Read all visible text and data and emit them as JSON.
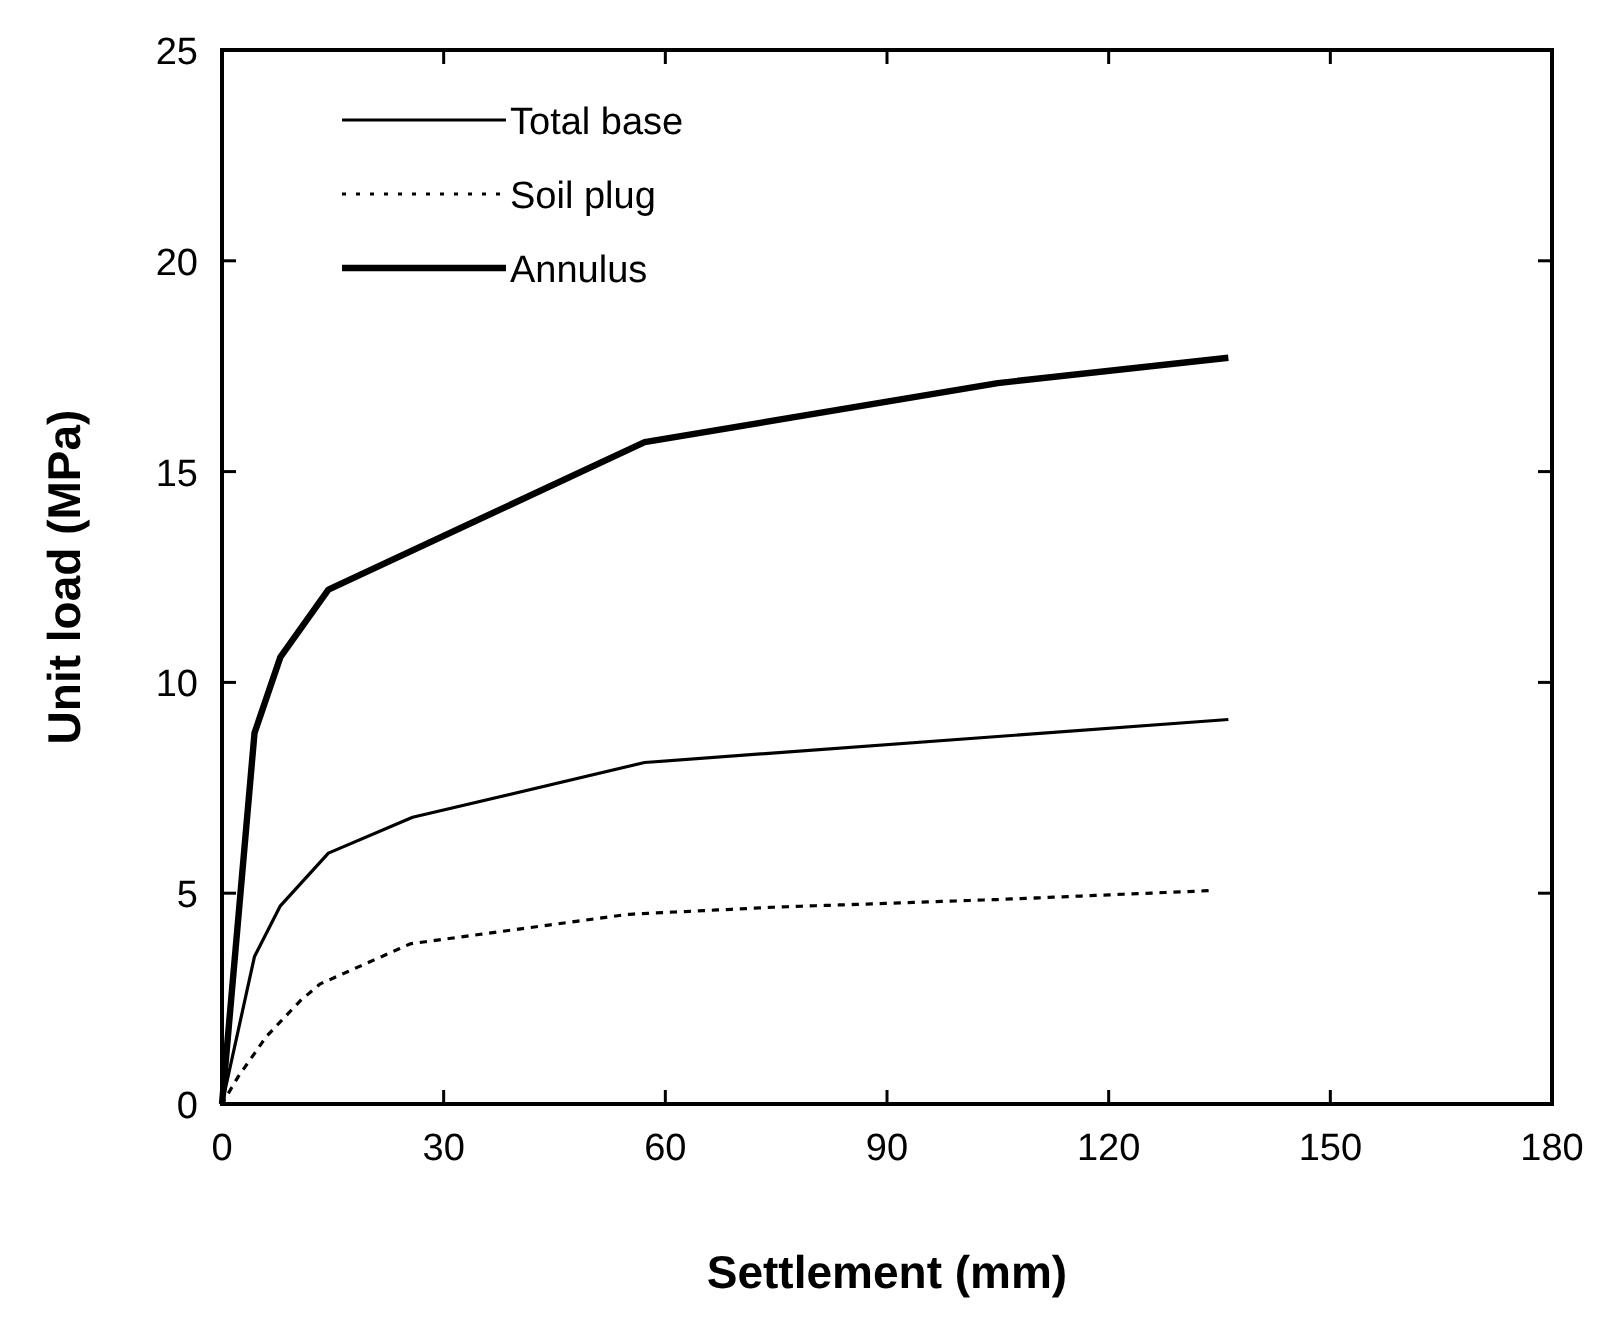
{
  "chart_data": {
    "type": "line",
    "xlabel": "Settlement (mm)",
    "ylabel": "Unit load (MPa)",
    "xlim": [
      0,
      180
    ],
    "xticks": [
      0,
      30,
      60,
      90,
      120,
      150,
      180
    ],
    "ylim": [
      0,
      25
    ],
    "yticks": [
      0,
      5,
      10,
      15,
      20,
      25
    ],
    "grid": false,
    "legend": "top left",
    "marker": "none",
    "series": [
      {
        "name": "Total base",
        "color": "#000000",
        "line_style": "solid",
        "x": [
          0,
          4.4,
          7.9,
          14.4,
          25.8,
          57.2,
          136.2
        ],
        "values": [
          0,
          3.5,
          4.7,
          5.95,
          6.8,
          8.1,
          9.12
        ]
      },
      {
        "name": "Soil plug",
        "color": "#000000",
        "line_style": "dotted",
        "x": [
          0,
          2.2,
          6,
          10.6,
          13.3,
          25.5,
          55,
          75,
          105,
          133.6
        ],
        "values": [
          0,
          0.65,
          1.6,
          2.45,
          2.85,
          3.8,
          4.5,
          4.67,
          4.85,
          5.06
        ]
      },
      {
        "name": "Annulus",
        "color": "#000000",
        "line_style": "solid",
        "x": [
          0,
          4.4,
          7.9,
          14.4,
          57.2,
          105,
          136.2
        ],
        "values": [
          0,
          8.8,
          10.6,
          12.2,
          15.7,
          17.1,
          17.7
        ]
      }
    ]
  }
}
